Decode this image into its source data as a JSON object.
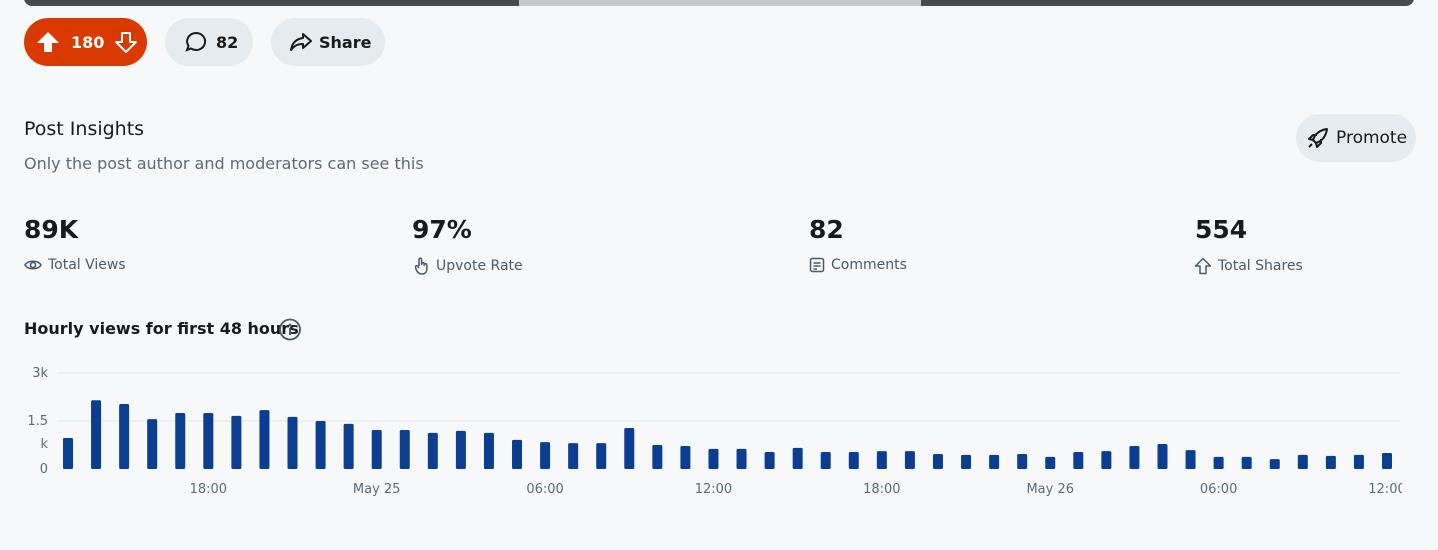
{
  "post_actions": {
    "score": "180",
    "comments": "82",
    "share": "Share"
  },
  "insights": {
    "title": "Post Insights",
    "subtitle": "Only the post author and moderators can see this",
    "promote": "Promote",
    "stats": [
      {
        "value": "89K",
        "label": "Total Views"
      },
      {
        "value": "97%",
        "label": "Upvote Rate"
      },
      {
        "value": "82",
        "label": "Comments"
      },
      {
        "value": "554",
        "label": "Total Shares"
      }
    ]
  },
  "chart_data": {
    "type": "bar",
    "title": "Hourly views for first 48 hours",
    "color": "#0b3d91",
    "grid": true,
    "categories": [
      null,
      null,
      null,
      null,
      null,
      "18:00",
      null,
      null,
      null,
      null,
      null,
      "May 25",
      null,
      null,
      null,
      null,
      null,
      "06:00",
      null,
      null,
      null,
      null,
      null,
      "12:00",
      null,
      null,
      null,
      null,
      null,
      "18:00",
      null,
      null,
      null,
      null,
      null,
      "May 26",
      null,
      null,
      null,
      null,
      null,
      "06:00",
      null,
      null,
      null,
      null,
      null,
      "12:00"
    ],
    "values": [
      970,
      2150,
      2030,
      1560,
      1750,
      1750,
      1660,
      1840,
      1630,
      1500,
      1410,
      1220,
      1220,
      1130,
      1190,
      1130,
      910,
      840,
      810,
      810,
      1280,
      750,
      720,
      630,
      630,
      530,
      660,
      530,
      530,
      560,
      560,
      470,
      440,
      440,
      470,
      380,
      530,
      560,
      720,
      780,
      590,
      380,
      380,
      310,
      440,
      410,
      440,
      500
    ],
    "ylim": [
      0,
      3000
    ],
    "yticks": [
      0,
      {
        "value": 1500,
        "label": "1.5k"
      },
      {
        "value": 3000,
        "label": "3k"
      }
    ]
  }
}
